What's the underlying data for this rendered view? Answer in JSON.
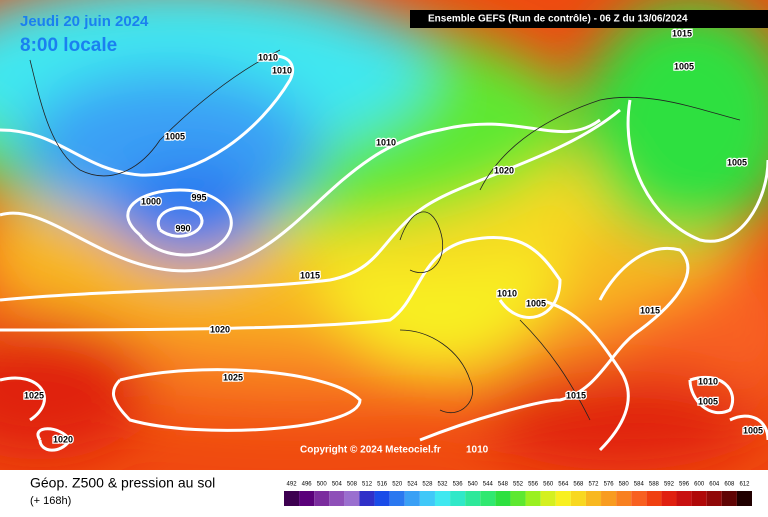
{
  "header": {
    "date": "Jeudi 20 juin 2024",
    "time": "8:00 locale",
    "run": "Ensemble GEFS  (Run de contrôle)  -  06 Z du 13/06/2024"
  },
  "isobar_labels": [
    1010,
    1010,
    1005,
    1000,
    995,
    990,
    1010,
    1020,
    1015,
    1020,
    1025,
    1025,
    1020,
    1010,
    1005,
    1015,
    1015,
    1010,
    1005,
    1005,
    1015,
    1005,
    1005
  ],
  "copyright": "Copyright © 2024 Meteociel.fr",
  "copyright_isobar": 1010,
  "footer": {
    "title": "Géop. Z500 & pression au sol",
    "lead": "(+ 168h)"
  },
  "colorbar": {
    "ticks": [
      492,
      496,
      500,
      504,
      508,
      512,
      516,
      520,
      524,
      528,
      532,
      536,
      540,
      544,
      548,
      552,
      556,
      560,
      564,
      568,
      572,
      576,
      580,
      584,
      588,
      592,
      596,
      600,
      604,
      608,
      612
    ],
    "colors": [
      "#3d0050",
      "#5a007a",
      "#7b2c9e",
      "#8e4fb8",
      "#9a6fcf",
      "#3030c8",
      "#1a4ce8",
      "#2a78f0",
      "#3aa0f5",
      "#40c8f8",
      "#40e8f0",
      "#30e8c8",
      "#2ee89a",
      "#30e870",
      "#2ee040",
      "#5ee830",
      "#9af020",
      "#d4f020",
      "#f8f020",
      "#f8d820",
      "#f8b820",
      "#f89c20",
      "#f88020",
      "#f86020",
      "#f04010",
      "#e02010",
      "#c81010",
      "#b00808",
      "#900808",
      "#600404",
      "#200000"
    ]
  }
}
